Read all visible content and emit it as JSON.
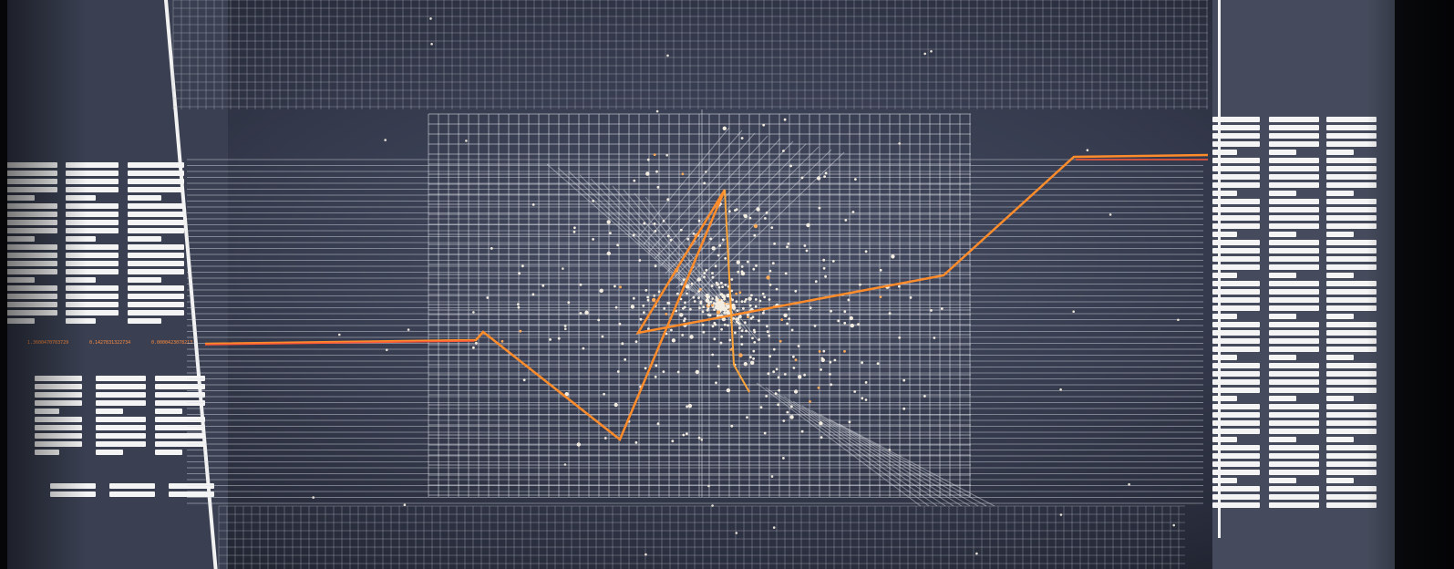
{
  "photo": {
    "subject": "Monitor displaying a white-on-dark wireframe data visualization with grids, scatter points and orange lines",
    "colors": {
      "background": "#363b4e",
      "grid": "#cfd3da",
      "points": "#f1eadf",
      "accent_orange": "#ff9a2e",
      "accent_red": "#ff5a3a",
      "text_bars": "#f4f4f4"
    }
  },
  "left_panel": {
    "orange_readouts": [
      "1.3600470703729",
      "0.1427831322734",
      "0.0000423078213"
    ]
  },
  "right_panel": {
    "columns": 3
  }
}
